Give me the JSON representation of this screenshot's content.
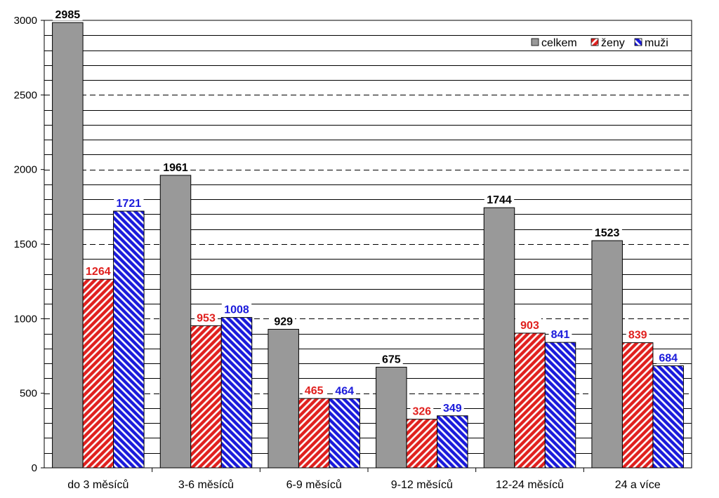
{
  "chart_data": {
    "type": "bar",
    "categories": [
      "do 3 měsíců",
      "3-6 měsíců",
      "6-9 měsíců",
      "9-12 měsíců",
      "12-24 měsíců",
      "24 a více"
    ],
    "series": [
      {
        "name": "celkem",
        "values": [
          2985,
          1961,
          929,
          675,
          1744,
          1523
        ],
        "color": "#999999",
        "label_color": "#000000",
        "pattern": "solid"
      },
      {
        "name": "ženy",
        "values": [
          1264,
          953,
          465,
          326,
          903,
          839
        ],
        "color": "#e0201e",
        "label_color": "#e0201e",
        "pattern": "hatch-up"
      },
      {
        "name": "muži",
        "values": [
          1721,
          1008,
          464,
          349,
          841,
          684
        ],
        "color": "#1a1adb",
        "label_color": "#1a1adb",
        "pattern": "hatch-down"
      }
    ],
    "ylim": [
      0,
      3000
    ],
    "yticks": [
      "0",
      "500",
      "1000",
      "1500",
      "2000",
      "2500",
      "3000"
    ],
    "ytick_values": [
      0,
      500,
      1000,
      1500,
      2000,
      2500,
      3000
    ],
    "minor_grid_step": 100,
    "grid": true,
    "legend_position": "top-right",
    "title": "",
    "xlabel": "",
    "ylabel": ""
  }
}
